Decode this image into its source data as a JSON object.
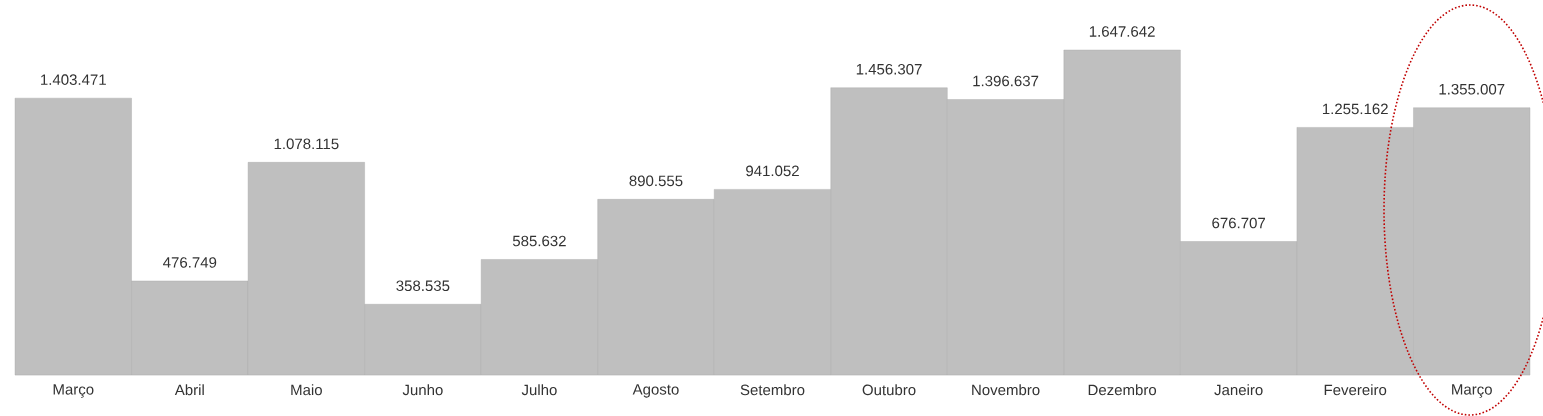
{
  "chart_data": {
    "type": "bar",
    "categories": [
      "Março",
      "Abril",
      "Maio",
      "Junho",
      "Julho",
      "Agosto",
      "Setembro",
      "Outubro",
      "Novembro",
      "Dezembro",
      "Janeiro",
      "Fevereiro",
      "Março"
    ],
    "values": [
      1403471,
      476749,
      1078115,
      358535,
      585632,
      890555,
      941052,
      1456307,
      1396637,
      1647642,
      676707,
      1255162,
      1355007
    ],
    "value_labels": [
      "1.403.471",
      "476.749",
      "1.078.115",
      "358.535",
      "585.632",
      "890.555",
      "941.052",
      "1.456.307",
      "1.396.637",
      "1.647.642",
      "676.707",
      "1.255.162",
      "1.355.007"
    ],
    "color": "#bfbfbf"
  }
}
